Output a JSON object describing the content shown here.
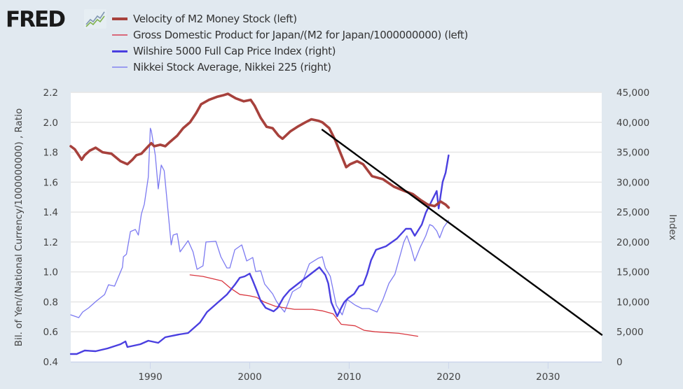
{
  "header": {
    "logo_text": "FRED",
    "logo_icon": "line-chart-icon"
  },
  "chart_data": {
    "type": "line",
    "title": "",
    "xlabel": "",
    "ylabel_left": "Bil. of Yen/(National Currency/1000000000) , Ratio",
    "ylabel_right": "Index",
    "xlim": [
      1982.0,
      2035.4
    ],
    "ylim_left": [
      0.4,
      2.2
    ],
    "ylim_right": [
      0,
      45000
    ],
    "grid": true,
    "legend_position": "top-left",
    "x_ticks": [
      "1990",
      "2000",
      "2010",
      "2020",
      "2030"
    ],
    "x_tick_values": [
      1990,
      2000,
      2010,
      2020,
      2030
    ],
    "y_left_ticks": [
      "0.4",
      "0.6",
      "0.8",
      "1.0",
      "1.2",
      "1.4",
      "1.6",
      "1.8",
      "2.0",
      "2.2"
    ],
    "y_left_tick_values": [
      0.4,
      0.6,
      0.8,
      1.0,
      1.2,
      1.4,
      1.6,
      1.8,
      2.0,
      2.2
    ],
    "y_right_ticks": [
      "0",
      "5,000",
      "10,000",
      "15,000",
      "20,000",
      "25,000",
      "30,000",
      "35,000",
      "40,000",
      "45,000"
    ],
    "y_right_tick_values": [
      0,
      5000,
      10000,
      15000,
      20000,
      25000,
      30000,
      35000,
      40000,
      45000
    ],
    "series": [
      {
        "name": "Velocity of M2 Money Stock (left)",
        "axis": "left",
        "color": "#a7413c",
        "width": "thick",
        "x": [
          1982.0,
          1982.4,
          1982.8,
          1983.1,
          1983.4,
          1983.9,
          1984.5,
          1985.2,
          1986.1,
          1987.0,
          1987.7,
          1988.2,
          1988.6,
          1989.1,
          1989.8,
          1990.1,
          1990.4,
          1991.0,
          1991.5,
          1992.0,
          1992.7,
          1993.3,
          1994.0,
          1994.6,
          1995.1,
          1995.9,
          1996.7,
          1997.3,
          1997.8,
          1998.6,
          1999.4,
          2000.1,
          2000.5,
          2001.1,
          2001.7,
          2002.3,
          2002.9,
          2003.3,
          2004.1,
          2004.8,
          2005.6,
          2006.2,
          2006.9,
          2007.3,
          2008.0,
          2008.6,
          2009.7,
          2010.1,
          2010.8,
          2011.4,
          2012.3,
          2013.4,
          2014.5,
          2015.6,
          2016.4,
          2017.2,
          2017.9,
          2018.6,
          2019.2,
          2019.7,
          2020.0
        ],
        "values": [
          1.84,
          1.82,
          1.78,
          1.75,
          1.78,
          1.81,
          1.83,
          1.8,
          1.79,
          1.74,
          1.72,
          1.75,
          1.78,
          1.79,
          1.84,
          1.86,
          1.84,
          1.85,
          1.84,
          1.87,
          1.91,
          1.96,
          2.0,
          2.06,
          2.12,
          2.15,
          2.17,
          2.18,
          2.19,
          2.16,
          2.14,
          2.15,
          2.11,
          2.03,
          1.97,
          1.96,
          1.91,
          1.89,
          1.94,
          1.97,
          2.0,
          2.02,
          2.01,
          2.0,
          1.96,
          1.88,
          1.7,
          1.72,
          1.74,
          1.72,
          1.64,
          1.62,
          1.57,
          1.54,
          1.52,
          1.48,
          1.45,
          1.44,
          1.47,
          1.45,
          1.43
        ]
      },
      {
        "name": "Gross Domestic Product for Japan/(M2 for Japan/1000000000) (left)",
        "axis": "left",
        "color": "#d9373f",
        "width": "thin",
        "x": [
          1994.0,
          1995.3,
          1997.2,
          1998.1,
          1999.0,
          2000.0,
          2000.7,
          2001.4,
          2002.6,
          2004.5,
          2006.3,
          2007.3,
          2008.4,
          2009.2,
          2010.6,
          2011.5,
          2012.6,
          2015.0,
          2016.9
        ],
        "values": [
          0.98,
          0.97,
          0.94,
          0.89,
          0.85,
          0.84,
          0.83,
          0.8,
          0.77,
          0.75,
          0.75,
          0.74,
          0.72,
          0.65,
          0.64,
          0.61,
          0.6,
          0.59,
          0.57
        ]
      },
      {
        "name": "Wilshire 5000 Full Cap Price Index (right)",
        "axis": "right",
        "color": "#4a3fe0",
        "width": "medium",
        "x": [
          1982.0,
          1982.6,
          1983.4,
          1984.5,
          1985.7,
          1987.0,
          1987.5,
          1987.7,
          1989.0,
          1989.8,
          1990.8,
          1991.5,
          1992.9,
          1993.8,
          1995.0,
          1995.7,
          1996.9,
          1997.7,
          1998.5,
          1999.0,
          1999.5,
          2000.0,
          2000.3,
          2000.7,
          2001.1,
          2001.6,
          2002.4,
          2002.8,
          2003.4,
          2004.0,
          2004.9,
          2006.0,
          2007.0,
          2007.6,
          2007.9,
          2008.2,
          2008.8,
          2009.2,
          2009.5,
          2009.9,
          2010.5,
          2011.0,
          2011.4,
          2011.8,
          2012.2,
          2012.7,
          2013.7,
          2014.8,
          2015.7,
          2016.2,
          2016.6,
          2017.3,
          2017.7,
          2018.2,
          2018.8,
          2019.0,
          2019.4,
          2019.7,
          2020.0
        ],
        "values": [
          1280,
          1280,
          1870,
          1750,
          2220,
          2920,
          3390,
          2450,
          2920,
          3510,
          3160,
          4090,
          4560,
          4790,
          6540,
          8300,
          10050,
          11220,
          12860,
          14030,
          14260,
          14730,
          13560,
          11920,
          10170,
          9000,
          8410,
          8990,
          10750,
          11920,
          13090,
          14490,
          15780,
          14490,
          13090,
          9940,
          7600,
          9000,
          9940,
          10630,
          11340,
          12620,
          12860,
          14610,
          16950,
          18700,
          19290,
          20570,
          22210,
          22210,
          21040,
          22910,
          24890,
          26530,
          28520,
          25600,
          30040,
          31560,
          34480
        ]
      },
      {
        "name": "Nikkei Stock Average, Nikkei 225 (right)",
        "axis": "right",
        "color": "#6e6cf0",
        "width": "thin",
        "x": [
          1982.0,
          1982.8,
          1983.2,
          1983.8,
          1984.6,
          1985.4,
          1985.8,
          1986.4,
          1987.2,
          1987.3,
          1987.6,
          1988.0,
          1988.5,
          1988.8,
          1989.1,
          1989.4,
          1989.8,
          1990.0,
          1990.1,
          1990.5,
          1990.8,
          1991.1,
          1991.4,
          1992.1,
          1992.3,
          1992.7,
          1993.0,
          1993.8,
          1994.3,
          1994.7,
          1995.3,
          1995.6,
          1996.6,
          1997.1,
          1997.7,
          1998.0,
          1998.5,
          1999.2,
          1999.7,
          2000.3,
          2000.6,
          2001.1,
          2001.5,
          2002.3,
          2002.7,
          2003.1,
          2003.5,
          2004.3,
          2005.1,
          2006.0,
          2006.9,
          2007.3,
          2007.6,
          2008.1,
          2008.7,
          2009.3,
          2009.8,
          2010.6,
          2011.3,
          2012.0,
          2012.8,
          2013.4,
          2014.0,
          2014.6,
          2015.5,
          2015.8,
          2016.2,
          2016.6,
          2017.1,
          2017.7,
          2018.1,
          2018.4,
          2018.8,
          2019.1,
          2019.5,
          2020.0
        ],
        "values": [
          7830,
          7360,
          8300,
          9000,
          10170,
          11220,
          12860,
          12620,
          15780,
          17530,
          17950,
          21740,
          22090,
          21160,
          24660,
          26300,
          30850,
          39000,
          38570,
          34480,
          28870,
          32850,
          31910,
          19520,
          21160,
          21390,
          18350,
          20220,
          18350,
          15430,
          16020,
          20000,
          20110,
          17530,
          15660,
          15660,
          18700,
          19520,
          16830,
          17420,
          15080,
          15200,
          12970,
          11340,
          10050,
          9120,
          8300,
          11690,
          12510,
          16360,
          17290,
          17530,
          15660,
          14260,
          9460,
          7830,
          10400,
          9460,
          8880,
          8880,
          8300,
          10400,
          13090,
          14610,
          19990,
          21040,
          19170,
          16830,
          18930,
          21040,
          22910,
          22680,
          21860,
          20690,
          22440,
          23610
        ]
      },
      {
        "name": "trend-line",
        "axis": "left",
        "color": "#000000",
        "width": "medium",
        "x": [
          2007.3,
          2035.4
        ],
        "values": [
          1.95,
          0.58
        ]
      }
    ]
  }
}
